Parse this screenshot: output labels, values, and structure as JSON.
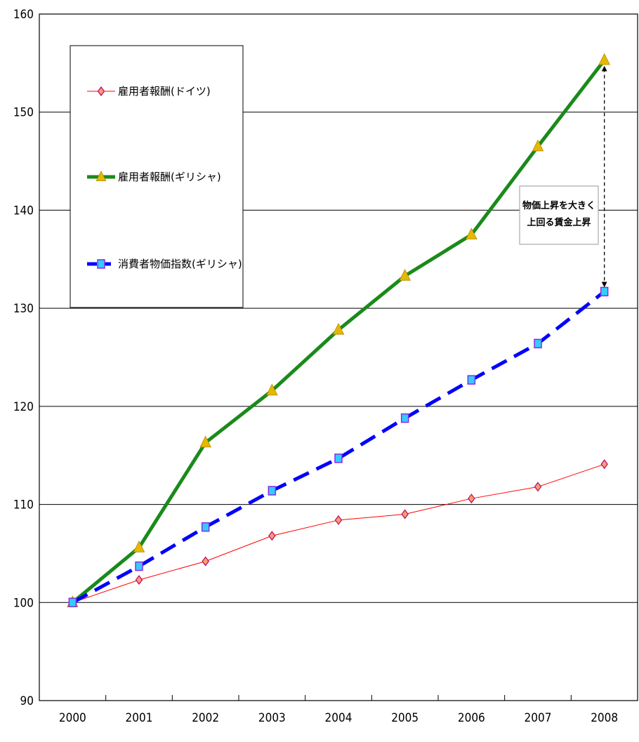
{
  "chart_data": {
    "type": "line",
    "x": [
      "2000",
      "2001",
      "2002",
      "2003",
      "2004",
      "2005",
      "2006",
      "2007",
      "2008"
    ],
    "ylim": [
      90,
      160
    ],
    "yticks": [
      "90",
      "100",
      "110",
      "120",
      "130",
      "140",
      "150",
      "160"
    ],
    "grid": true,
    "legend_position": "top-left",
    "series": [
      {
        "name": "雇用者報酬(ドイツ)",
        "values": [
          100,
          102.3,
          104.2,
          106.8,
          108.4,
          109.0,
          110.6,
          111.8,
          114.1
        ],
        "color": "#ff0000",
        "marker": "diamond",
        "marker_color": "#f4a06c"
      },
      {
        "name": "雇用者報酬(ギリシャ)",
        "values": [
          100,
          105.6,
          116.3,
          121.6,
          127.8,
          133.3,
          137.5,
          146.5,
          155.3
        ],
        "color": "#1a8a1a",
        "marker": "triangle",
        "marker_color": "#e6b800"
      },
      {
        "name": "消費者物価指数(ギリシャ)",
        "values": [
          100,
          103.7,
          107.7,
          111.4,
          114.7,
          118.8,
          122.7,
          126.4,
          131.7
        ],
        "color": "#0000ff",
        "marker": "square",
        "marker_color": "#33ccff"
      }
    ],
    "annotation": {
      "lines": [
        "物価上昇を大きく",
        "上回る賃金上昇"
      ],
      "x": "2008",
      "from_value": 131.7,
      "to_value": 155.3
    }
  }
}
